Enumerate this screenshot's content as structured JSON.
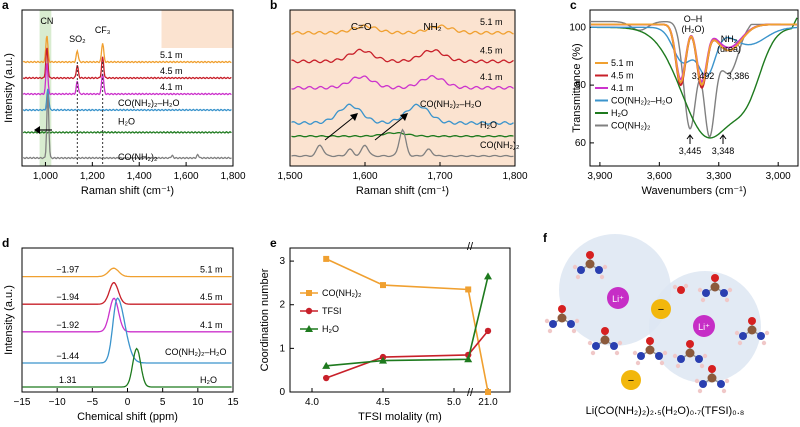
{
  "colors": {
    "m51": "#f0a030",
    "m45": "#c8202a",
    "m41": "#cc33cc",
    "urea_h2o": "#3b94cc",
    "h2o": "#1e7a1e",
    "urea": "#808080",
    "shade_peach": "#fbe3d0",
    "shade_green": "#d8ecd0"
  },
  "chart_data": [
    {
      "id": "a",
      "panel_label": "a",
      "type": "line",
      "xlabel": "Raman shift (cm⁻¹)",
      "ylabel": "Intensity (a.u.)",
      "xlim": [
        900,
        1800
      ],
      "xticks": [
        "1,000",
        "1,200",
        "1,400",
        "1,600",
        "1,800"
      ],
      "xtick_values": [
        1000,
        1200,
        1400,
        1600,
        1800
      ],
      "annotations": [
        "CN",
        "SO₂",
        "CF₃"
      ],
      "series": [
        {
          "name": "5.1 m",
          "color": "#f0a030",
          "offset": 6,
          "peaks": [
            [
              1006,
              1.7
            ],
            [
              1136,
              0.7
            ],
            [
              1244,
              1.2
            ]
          ]
        },
        {
          "name": "4.5 m",
          "color": "#c8202a",
          "offset": 5,
          "peaks": [
            [
              1006,
              1.9
            ],
            [
              1136,
              0.8
            ],
            [
              1244,
              1.3
            ]
          ]
        },
        {
          "name": "4.1 m",
          "color": "#cc33cc",
          "offset": 4,
          "peaks": [
            [
              1006,
              2.0
            ],
            [
              1136,
              0.8
            ],
            [
              1244,
              1.3
            ]
          ]
        },
        {
          "name": "CO(NH₂)₂–H₂O",
          "color": "#3b94cc",
          "offset": 3,
          "peaks": [
            [
              1010,
              1.3
            ]
          ]
        },
        {
          "name": "H₂O",
          "color": "#1e7a1e",
          "offset": 1.6,
          "peaks": []
        },
        {
          "name": "CO(NH₂)₂",
          "color": "#808080",
          "offset": 0,
          "peaks": [
            [
              1010,
              4.0
            ],
            [
              1540,
              0.15
            ],
            [
              1650,
              0.2
            ]
          ]
        }
      ]
    },
    {
      "id": "b",
      "panel_label": "b",
      "type": "line",
      "xlabel": "Raman shift (cm⁻¹)",
      "ylabel": "",
      "xlim": [
        1500,
        1800
      ],
      "xticks": [
        "1,500",
        "1,600",
        "1,700",
        "1,800"
      ],
      "xtick_values": [
        1500,
        1600,
        1700,
        1800
      ],
      "annotations": [
        "C=O",
        "NH₂"
      ],
      "series": [
        {
          "name": "5.1 m",
          "color": "#f0a030",
          "offset": 5.6,
          "peaks": [
            [
              1600,
              0.3
            ],
            [
              1700,
              0.3
            ]
          ]
        },
        {
          "name": "4.5 m",
          "color": "#c8202a",
          "offset": 4.3,
          "peaks": [
            [
              1595,
              0.5
            ],
            [
              1690,
              0.5
            ]
          ]
        },
        {
          "name": "4.1 m",
          "color": "#cc33cc",
          "offset": 3.1,
          "peaks": [
            [
              1595,
              0.5
            ],
            [
              1690,
              0.5
            ]
          ]
        },
        {
          "name": "CO(NH₂)₂–H₂O",
          "color": "#3b94cc",
          "offset": 1.5,
          "peaks": [
            [
              1580,
              0.8
            ],
            [
              1670,
              0.8
            ]
          ]
        },
        {
          "name": "H₂O",
          "color": "#1e7a1e",
          "offset": 0.9,
          "peaks": [
            [
              1640,
              0.15
            ]
          ]
        },
        {
          "name": "CO(NH₂)₂",
          "color": "#808080",
          "offset": 0,
          "peaks": [
            [
              1540,
              0.5
            ],
            [
              1580,
              0.3
            ],
            [
              1600,
              0.5
            ],
            [
              1650,
              1.2
            ],
            [
              1685,
              0.3
            ]
          ]
        }
      ]
    },
    {
      "id": "c",
      "panel_label": "c",
      "type": "line",
      "xlabel": "Wavenumbers (cm⁻¹)",
      "ylabel": "Transmittance (%)",
      "xlim": [
        3950,
        2900
      ],
      "ylim": [
        52,
        106
      ],
      "xticks": [
        "3,900",
        "3,600",
        "3,300",
        "3,000"
      ],
      "xtick_values": [
        3900,
        3600,
        3300,
        3000
      ],
      "yticks": [
        "60",
        "80",
        "100"
      ],
      "ytick_values": [
        60,
        80,
        100
      ],
      "annotations": [
        "O–H",
        "(H₂O)",
        "NH₂",
        "(urea)",
        "3,492",
        "3,386",
        "3,445",
        "3,348"
      ],
      "legend": [
        "5.1 m",
        "4.5 m",
        "4.1 m",
        "CO(NH₂)₂–H₂O",
        "H₂O",
        "CO(NH₂)₂"
      ],
      "series": [
        {
          "name": "5.1 m",
          "color": "#f0a030",
          "base": 101,
          "dips": [
            [
              3492,
              20,
              35
            ],
            [
              3386,
              20,
              35
            ],
            [
              3250,
              9,
              90
            ]
          ]
        },
        {
          "name": "4.5 m",
          "color": "#c8202a",
          "base": 101,
          "dips": [
            [
              3492,
              21,
              35
            ],
            [
              3386,
              21,
              35
            ],
            [
              3250,
              9,
              90
            ]
          ]
        },
        {
          "name": "4.1 m",
          "color": "#cc33cc",
          "base": 101,
          "dips": [
            [
              3492,
              19,
              35
            ],
            [
              3386,
              19,
              35
            ],
            [
              3250,
              8,
              90
            ]
          ]
        },
        {
          "name": "CO(NH₂)₂–H₂O",
          "color": "#3b94cc",
          "base": 100,
          "dips": [
            [
              3480,
              12,
              70
            ],
            [
              3360,
              16,
              60
            ],
            [
              3150,
              6,
              120
            ]
          ]
        },
        {
          "name": "H₂O",
          "color": "#1e7a1e",
          "base": 100,
          "dips": [
            [
              3350,
              38,
              190
            ],
            [
              3150,
              14,
              100
            ]
          ]
        },
        {
          "name": "CO(NH₂)₂",
          "color": "#808080",
          "base": 102,
          "dips": [
            [
              3445,
              37,
              45
            ],
            [
              3348,
              37,
              40
            ],
            [
              3250,
              18,
              70
            ],
            [
              3700,
              3,
              60
            ]
          ]
        }
      ]
    },
    {
      "id": "d",
      "panel_label": "d",
      "type": "line",
      "xlabel": "Chemical shift (ppm)",
      "ylabel": "Intensity (a.u.)",
      "xlim": [
        -15,
        15
      ],
      "xticks": [
        "−15",
        "−10",
        "−5",
        "0",
        "5",
        "10",
        "15"
      ],
      "xtick_values": [
        -15,
        -10,
        -5,
        0,
        5,
        10,
        15
      ],
      "series": [
        {
          "name": "5.1 m",
          "color": "#f0a030",
          "offset": 4.6,
          "peak": [
            -1.97,
            0.35,
            1.0
          ],
          "value_label": "−1.97"
        },
        {
          "name": "4.5 m",
          "color": "#c8202a",
          "offset": 3.45,
          "peak": [
            -1.94,
            0.9,
            0.9
          ],
          "value_label": "−1.94"
        },
        {
          "name": "4.1 m",
          "color": "#cc33cc",
          "offset": 2.3,
          "peak": [
            -1.92,
            1.4,
            0.9
          ],
          "value_label": "−1.92"
        },
        {
          "name": "CO(NH₂)₂–H₂O",
          "color": "#3b94cc",
          "offset": 1.0,
          "peak": [
            -1.44,
            2.7,
            0.9
          ],
          "value_label": "−1.44"
        },
        {
          "name": "H₂O",
          "color": "#1e7a1e",
          "offset": 0,
          "peak": [
            1.31,
            1.6,
            0.8
          ],
          "value_label": "1.31"
        }
      ]
    },
    {
      "id": "e",
      "panel_label": "e",
      "type": "line",
      "xlabel": "TFSI molality (m)",
      "ylabel": "Coordination number",
      "categories": [
        "4.0",
        "4.5",
        "5.0",
        "21.0"
      ],
      "x": [
        4.1,
        4.5,
        5.1,
        21.0
      ],
      "ylim": [
        0,
        3.3
      ],
      "yticks": [
        "0",
        "1",
        "2",
        "3"
      ],
      "ytick_values": [
        0,
        1,
        2,
        3
      ],
      "axis_break_mark": "//",
      "series": [
        {
          "name": "CO(NH₂)₂",
          "color": "#f0a030",
          "marker": "square",
          "values": [
            3.05,
            2.45,
            2.35,
            0.0
          ]
        },
        {
          "name": "TFSI",
          "color": "#c8202a",
          "marker": "circle",
          "values": [
            0.32,
            0.8,
            0.85,
            1.4
          ]
        },
        {
          "name": "H₂O",
          "color": "#1e7a1e",
          "marker": "triangle",
          "values": [
            0.6,
            0.72,
            0.75,
            2.65
          ]
        }
      ]
    }
  ],
  "panel_f": {
    "label": "f",
    "li_label": "Li⁺",
    "anion_label": "−",
    "formula": "Li(CO(NH₂)₂)₂.₅(H₂O)₀.₇(TFSI)₀.₈"
  }
}
